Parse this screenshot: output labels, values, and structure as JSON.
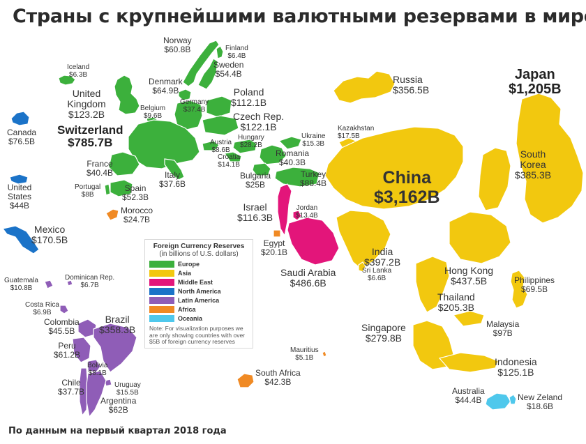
{
  "title": "Страны с крупнейшими валютными резервами в мире",
  "footer": "По данным на первый квартал 2018 года",
  "legend": {
    "title": "Foreign Currency Reserves",
    "subtitle": "(in billions of U.S. dollars)",
    "items": [
      {
        "label": "Europe",
        "color": "#3cb03c"
      },
      {
        "label": "Asia",
        "color": "#f2c80f"
      },
      {
        "label": "Middle East",
        "color": "#e3157a"
      },
      {
        "label": "North America",
        "color": "#1b73c8"
      },
      {
        "label": "Latin America",
        "color": "#8f5db7"
      },
      {
        "label": "Africa",
        "color": "#f08a24"
      },
      {
        "label": "Oceania",
        "color": "#4fc8ec"
      }
    ],
    "note": "Note: For visualization purposes we are only showing countries with over $5B of foreign currency reserves"
  },
  "countries": [
    {
      "id": "norway",
      "name": "Norway",
      "value": "$60.8B"
    },
    {
      "id": "finland",
      "name": "Finland",
      "value": "$6.4B"
    },
    {
      "id": "sweden",
      "name": "Sweden",
      "value": "$54.4B"
    },
    {
      "id": "iceland",
      "name": "Iceland",
      "value": "$6.3B"
    },
    {
      "id": "denmark",
      "name": "Denmark",
      "value": "$64.9B"
    },
    {
      "id": "uk",
      "name": "United Kingdom",
      "value": "$123.2B"
    },
    {
      "id": "germany",
      "name": "Germany",
      "value": "$37.4B"
    },
    {
      "id": "belgium",
      "name": "Belgium",
      "value": "$9.6B"
    },
    {
      "id": "poland",
      "name": "Poland",
      "value": "$112.1B"
    },
    {
      "id": "czech",
      "name": "Czech Rep.",
      "value": "$122.1B"
    },
    {
      "id": "switzerland",
      "name": "Switzerland",
      "value": "$785.7B"
    },
    {
      "id": "austria",
      "name": "Austria",
      "value": "$8.6B"
    },
    {
      "id": "hungary",
      "name": "Hungary",
      "value": "$28.2B"
    },
    {
      "id": "ukraine",
      "name": "Ukraine",
      "value": "$15.3B"
    },
    {
      "id": "croatia",
      "name": "Croatia",
      "value": "$14.1B"
    },
    {
      "id": "romania",
      "name": "Romania",
      "value": "$40.3B"
    },
    {
      "id": "france",
      "name": "France",
      "value": "$40.4B"
    },
    {
      "id": "italy",
      "name": "Italy",
      "value": "$37.6B"
    },
    {
      "id": "bulgaria",
      "name": "Bulgaria",
      "value": "$25B"
    },
    {
      "id": "turkey",
      "name": "Turkey",
      "value": "$88.4B"
    },
    {
      "id": "portugal",
      "name": "Portugal",
      "value": "$8B"
    },
    {
      "id": "spain",
      "name": "Spain",
      "value": "$52.3B"
    },
    {
      "id": "morocco",
      "name": "Morocco",
      "value": "$24.7B"
    },
    {
      "id": "russia",
      "name": "Russia",
      "value": "$356.5B"
    },
    {
      "id": "kazakhstan",
      "name": "Kazakhstan",
      "value": "$17.5B"
    },
    {
      "id": "japan",
      "name": "Japan",
      "value": "$1,205B"
    },
    {
      "id": "south_korea",
      "name": "South Korea",
      "value": "$385.3B"
    },
    {
      "id": "china",
      "name": "China",
      "value": "$3,162B"
    },
    {
      "id": "israel",
      "name": "Israel",
      "value": "$116.3B"
    },
    {
      "id": "jordan",
      "name": "Jordan",
      "value": "$13.4B"
    },
    {
      "id": "egypt",
      "name": "Egypt",
      "value": "$20.1B"
    },
    {
      "id": "saudi_arabia",
      "name": "Saudi Arabia",
      "value": "$486.6B"
    },
    {
      "id": "india",
      "name": "India",
      "value": "$397.2B"
    },
    {
      "id": "sri_lanka",
      "name": "Sri Lanka",
      "value": "$6.6B"
    },
    {
      "id": "hong_kong",
      "name": "Hong Kong",
      "value": "$437.5B"
    },
    {
      "id": "philippines",
      "name": "Philippines",
      "value": "$69.5B"
    },
    {
      "id": "thailand",
      "name": "Thailand",
      "value": "$205.3B"
    },
    {
      "id": "malaysia",
      "name": "Malaysia",
      "value": "$97B"
    },
    {
      "id": "singapore",
      "name": "Singapore",
      "value": "$279.8B"
    },
    {
      "id": "indonesia",
      "name": "Indonesia",
      "value": "$125.1B"
    },
    {
      "id": "australia",
      "name": "Australia",
      "value": "$44.4B"
    },
    {
      "id": "new_zealand",
      "name": "New Zeland",
      "value": "$18.6B"
    },
    {
      "id": "mauritius",
      "name": "Mauritius",
      "value": "$5.1B"
    },
    {
      "id": "south_africa",
      "name": "South Africa",
      "value": "$42.3B"
    },
    {
      "id": "canada",
      "name": "Canada",
      "value": "$76.5B"
    },
    {
      "id": "usa",
      "name": "United States",
      "value": "$44B"
    },
    {
      "id": "mexico",
      "name": "Mexico",
      "value": "$170.5B"
    },
    {
      "id": "guatemala",
      "name": "Guatemala",
      "value": "$10.8B"
    },
    {
      "id": "dominican",
      "name": "Dominican Rep.",
      "value": "$6.7B"
    },
    {
      "id": "costa_rica",
      "name": "Costa Rica",
      "value": "$6.9B"
    },
    {
      "id": "colombia",
      "name": "Colombia",
      "value": "$45.5B"
    },
    {
      "id": "brazil",
      "name": "Brazil",
      "value": "$358.3B"
    },
    {
      "id": "peru",
      "name": "Peru",
      "value": "$61.2B"
    },
    {
      "id": "bolivia",
      "name": "Bolivia",
      "value": "$8.1B"
    },
    {
      "id": "chile",
      "name": "Chile",
      "value": "$37.7B"
    },
    {
      "id": "uruguay",
      "name": "Uruguay",
      "value": "$15.5B"
    },
    {
      "id": "argentina",
      "name": "Argentina",
      "value": "$62B"
    }
  ]
}
